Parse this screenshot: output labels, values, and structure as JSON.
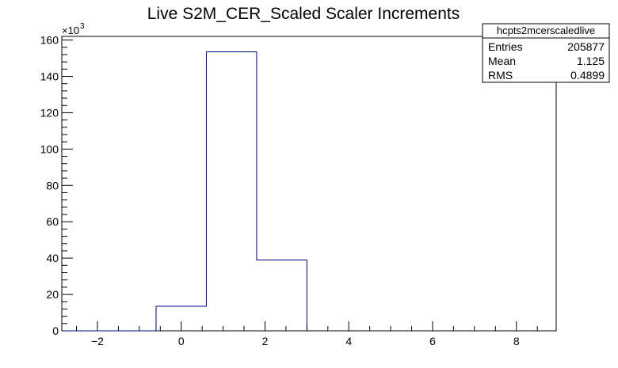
{
  "chart_data": {
    "type": "bar",
    "title": "Live S2M_CER_Scaled Scaler Increments",
    "xlabel": "",
    "ylabel": "",
    "xlim": [
      -2.85,
      8.95
    ],
    "ylim": [
      0,
      162000
    ],
    "x_ticks": [
      -2,
      0,
      2,
      4,
      6,
      8
    ],
    "x_tick_labels": [
      "−2",
      "0",
      "2",
      "4",
      "6",
      "8"
    ],
    "y_ticks": [
      0,
      20000,
      40000,
      60000,
      80000,
      100000,
      120000,
      140000,
      160000
    ],
    "y_tick_labels": [
      "0",
      "20",
      "40",
      "60",
      "80",
      "100",
      "120",
      "140",
      "160"
    ],
    "y_exponent_label": "×10",
    "y_exponent_power": "3",
    "bin_edges": [
      -0.6,
      0.6,
      1.8,
      3.0
    ],
    "values": [
      13500,
      153500,
      39000
    ],
    "line_color": "#000080",
    "stats_box": {
      "name": "hcpts2mcerscaledlive",
      "rows": [
        {
          "label": "Entries",
          "value": "205877"
        },
        {
          "label": "Mean",
          "value": "1.125"
        },
        {
          "label": "RMS",
          "value": "0.4899"
        }
      ]
    }
  }
}
